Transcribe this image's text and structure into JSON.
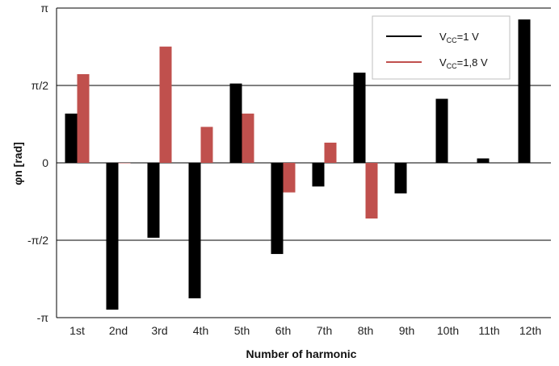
{
  "chart_data": {
    "type": "bar",
    "xlabel": "Number of harmonic",
    "ylabel": "φn [rad]",
    "ylim": [
      -3.14159,
      3.14159
    ],
    "yticks": [
      {
        "value": -3.14159,
        "label": "-π"
      },
      {
        "value": -1.5708,
        "label": "-π/2"
      },
      {
        "value": 0,
        "label": "0"
      },
      {
        "value": 1.5708,
        "label": "π/2"
      },
      {
        "value": 3.14159,
        "label": "π"
      }
    ],
    "grid": true,
    "legend_position": "top-right",
    "categories": [
      "1st",
      "2nd",
      "3rd",
      "4th",
      "5th",
      "6th",
      "7th",
      "8th",
      "9th",
      "10th",
      "11th",
      "12th"
    ],
    "series": [
      {
        "name": "VCC=1 V",
        "name_main": "V",
        "name_sub": "CC",
        "name_rest": "=1 V",
        "color": "#000000",
        "values": [
          1.0,
          -2.98,
          -1.52,
          -2.75,
          1.61,
          -1.85,
          -0.48,
          1.83,
          -0.62,
          1.3,
          0.09,
          2.91
        ]
      },
      {
        "name": "VCC=1,8 V",
        "name_main": "V",
        "name_sub": "CC",
        "name_rest": "=1,8 V",
        "color": "#c0504d",
        "values": [
          1.8,
          0.0,
          2.36,
          0.73,
          1.0,
          -0.6,
          0.41,
          -1.13,
          null,
          null,
          null,
          null
        ]
      }
    ]
  }
}
